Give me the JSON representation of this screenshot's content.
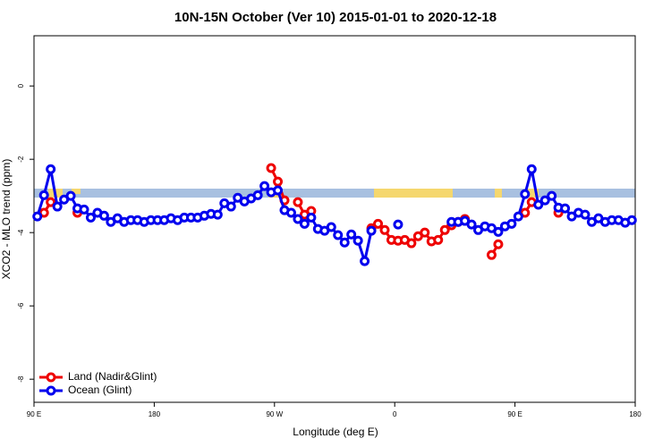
{
  "chart_data": {
    "type": "line",
    "title": "10N-15N October (Ver 10)   2015-01-01 to 2020-12-18",
    "x_label": "Longitude (deg E)",
    "y_label": "XCO2 - MLO trend (ppm)",
    "x": [
      92.5,
      97.5,
      102.5,
      107.5,
      112.5,
      117.5,
      122.5,
      127.5,
      132.5,
      137.5,
      142.5,
      147.5,
      152.5,
      157.5,
      162.5,
      167.5,
      172.5,
      177.5,
      182.5,
      187.5,
      192.5,
      197.5,
      202.5,
      207.5,
      212.5,
      217.5,
      222.5,
      227.5,
      232.5,
      237.5,
      242.5,
      247.5,
      252.5,
      257.5,
      262.5,
      267.5,
      272.5,
      277.5,
      282.5,
      287.5,
      292.5,
      297.5,
      302.5,
      307.5,
      312.5,
      317.5,
      322.5,
      327.5,
      332.5,
      337.5,
      342.5,
      347.5,
      352.5,
      357.5,
      362.5,
      367.5,
      372.5,
      377.5,
      382.5,
      387.5,
      392.5,
      397.5,
      402.5,
      407.5,
      412.5,
      417.5,
      422.5,
      427.5,
      432.5,
      437.5,
      442.5,
      447.5,
      452.5,
      457.5,
      462.5,
      467.5,
      472.5,
      477.5,
      482.5,
      487.5,
      492.5,
      497.5,
      502.5,
      507.5,
      512.5,
      517.5,
      522.5,
      527.5,
      532.5,
      537.5
    ],
    "series": [
      {
        "name": "Land (Nadir&Glint)",
        "color": "#ee0000",
        "values": [
          null,
          -3.46,
          -3.17,
          null,
          null,
          null,
          -3.46,
          null,
          null,
          null,
          null,
          null,
          null,
          null,
          null,
          null,
          null,
          null,
          null,
          null,
          null,
          null,
          null,
          null,
          null,
          null,
          null,
          null,
          null,
          null,
          null,
          null,
          null,
          null,
          null,
          -2.24,
          -2.61,
          -3.12,
          null,
          -3.17,
          -3.51,
          -3.41,
          null,
          null,
          null,
          null,
          null,
          null,
          null,
          null,
          -3.88,
          -3.76,
          -3.93,
          -4.2,
          -4.22,
          -4.2,
          -4.29,
          -4.1,
          -4.0,
          -4.24,
          -4.2,
          -3.93,
          -3.8,
          -3.71,
          -3.63,
          null,
          null,
          null,
          -4.61,
          -4.32,
          null,
          null,
          null,
          -3.46,
          -3.17,
          null,
          null,
          null,
          -3.46,
          null,
          null,
          null,
          null,
          null,
          null,
          null,
          null,
          null,
          null,
          null
        ]
      },
      {
        "name": "Ocean (Glint)",
        "color": "#0000ee",
        "values": [
          -3.56,
          -2.98,
          -2.27,
          -3.29,
          -3.1,
          -3.0,
          -3.34,
          -3.37,
          -3.59,
          -3.46,
          -3.54,
          -3.71,
          -3.61,
          -3.71,
          -3.66,
          -3.66,
          -3.71,
          -3.66,
          -3.66,
          -3.66,
          -3.61,
          -3.66,
          -3.59,
          -3.59,
          -3.59,
          -3.54,
          -3.49,
          -3.51,
          -3.2,
          -3.29,
          -3.05,
          -3.15,
          -3.07,
          -2.98,
          -2.73,
          -2.9,
          -2.85,
          -3.39,
          -3.46,
          -3.63,
          -3.76,
          -3.59,
          -3.9,
          -3.95,
          -3.85,
          -4.07,
          -4.27,
          -4.05,
          -4.22,
          -4.78,
          -3.95,
          null,
          null,
          null,
          -3.78,
          null,
          null,
          null,
          null,
          null,
          null,
          null,
          -3.71,
          -3.71,
          -3.68,
          -3.78,
          -3.93,
          -3.83,
          -3.88,
          -3.98,
          -3.83,
          -3.76,
          -3.56,
          -2.95,
          -2.27,
          -3.24,
          -3.12,
          -3.0,
          -3.32,
          -3.34,
          -3.56,
          -3.46,
          -3.51,
          -3.71,
          -3.61,
          -3.71,
          -3.66,
          -3.66,
          -3.73,
          -3.66
        ]
      }
    ],
    "xlim": [
      90,
      540
    ],
    "ylim": [
      -8.63,
      1.37
    ],
    "xticks": [
      {
        "value": 90,
        "label": "90 E"
      },
      {
        "value": 180,
        "label": "180"
      },
      {
        "value": 270,
        "label": "90 W"
      },
      {
        "value": 360,
        "label": "0"
      },
      {
        "value": 450,
        "label": "90 E"
      },
      {
        "value": 540,
        "label": "180"
      }
    ],
    "yticks": [
      0,
      -2,
      -4,
      -6,
      -8
    ],
    "legend": "bottom-left"
  }
}
